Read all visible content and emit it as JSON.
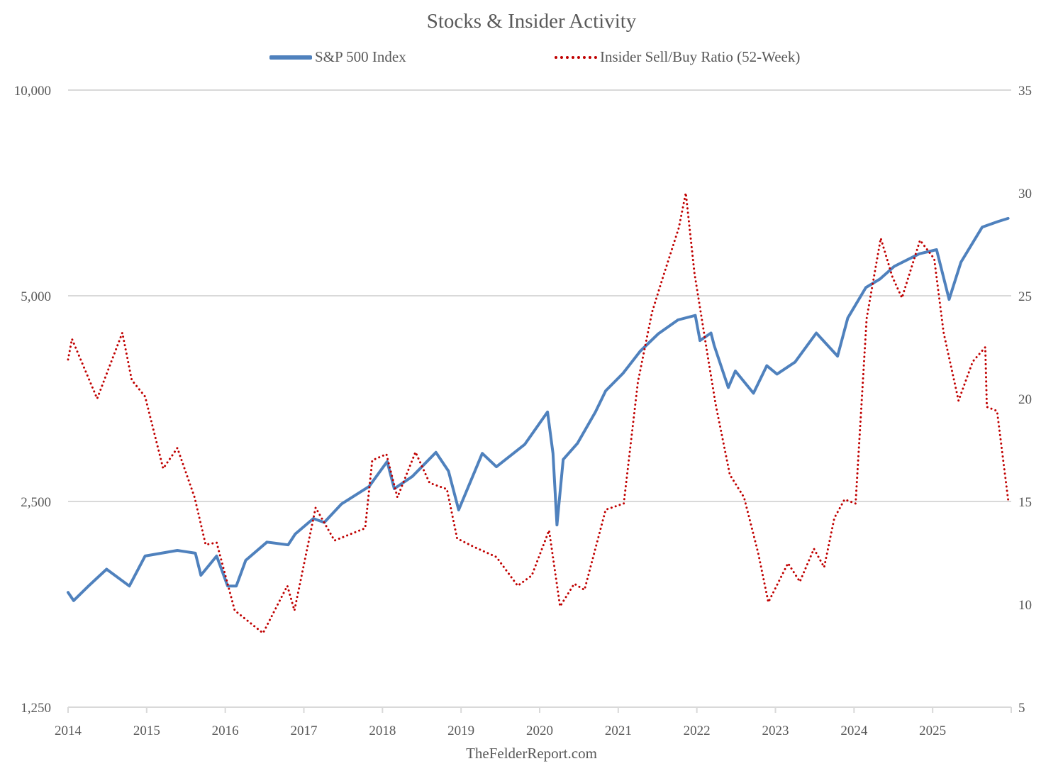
{
  "chart_data": {
    "type": "line",
    "title": "Stocks & Insider Activity",
    "footer": "TheFelderReport.com",
    "legend": {
      "placement": "top",
      "entries": [
        {
          "name": "S&P 500 Index",
          "style": "solid",
          "color": "#4f81bd",
          "axis": "left"
        },
        {
          "name": "Insider Sell/Buy Ratio (52-Week)",
          "style": "dotted",
          "color": "#c00000",
          "axis": "right"
        }
      ]
    },
    "x_axis": {
      "type": "time",
      "range": [
        2014.0,
        2026.0
      ],
      "tick_labels": [
        "2014",
        "2015",
        "2016",
        "2017",
        "2018",
        "2019",
        "2020",
        "2021",
        "2022",
        "2023",
        "2024",
        "2025"
      ],
      "tick_values": [
        2014,
        2015,
        2016,
        2017,
        2018,
        2019,
        2020,
        2021,
        2022,
        2023,
        2024,
        2025,
        2026
      ]
    },
    "y_left": {
      "scale": "log",
      "range": [
        1250,
        10000
      ],
      "tick_values": [
        1250,
        2500,
        5000,
        10000
      ],
      "tick_labels": [
        "1,250",
        "2,500",
        "5,000",
        "10,000"
      ],
      "grid": true
    },
    "y_right": {
      "scale": "linear",
      "range": [
        5,
        35
      ],
      "tick_values": [
        5,
        10,
        15,
        20,
        25,
        30,
        35
      ],
      "tick_labels": [
        "5",
        "10",
        "15",
        "20",
        "25",
        "30",
        "35"
      ]
    },
    "series": [
      {
        "name": "S&P 500 Index",
        "axis": "left",
        "x": [
          2014.0,
          2014.07,
          2014.26,
          2014.49,
          2014.78,
          2014.98,
          2015.39,
          2015.62,
          2015.69,
          2015.89,
          2016.03,
          2016.14,
          2016.26,
          2016.53,
          2016.8,
          2016.89,
          2017.12,
          2017.26,
          2017.48,
          2017.83,
          2018.06,
          2018.15,
          2018.38,
          2018.68,
          2018.84,
          2018.97,
          2019.27,
          2019.45,
          2019.81,
          2020.1,
          2020.17,
          2020.22,
          2020.3,
          2020.48,
          2020.71,
          2020.84,
          2021.06,
          2021.28,
          2021.51,
          2021.76,
          2021.98,
          2022.04,
          2022.18,
          2022.22,
          2022.4,
          2022.49,
          2022.72,
          2022.89,
          2023.02,
          2023.25,
          2023.52,
          2023.79,
          2023.92,
          2024.15,
          2024.33,
          2024.51,
          2024.83,
          2025.05,
          2025.21,
          2025.36,
          2025.63,
          2025.83,
          2025.96
        ],
        "values": [
          1840,
          1790,
          1880,
          1990,
          1880,
          2080,
          2120,
          2100,
          1950,
          2080,
          1880,
          1880,
          2050,
          2180,
          2160,
          2240,
          2360,
          2330,
          2480,
          2630,
          2860,
          2610,
          2720,
          2950,
          2770,
          2430,
          2940,
          2810,
          3030,
          3380,
          2940,
          2310,
          2880,
          3040,
          3380,
          3630,
          3850,
          4150,
          4400,
          4610,
          4680,
          4300,
          4410,
          4230,
          3670,
          3880,
          3600,
          3950,
          3840,
          4000,
          4410,
          4080,
          4640,
          5140,
          5290,
          5520,
          5760,
          5840,
          4940,
          5600,
          6300,
          6420,
          6490
        ]
      },
      {
        "name": "Insider Sell/Buy Ratio (52-Week)",
        "axis": "right",
        "x": [
          2014.0,
          2014.05,
          2014.37,
          2014.69,
          2014.81,
          2014.98,
          2015.21,
          2015.39,
          2015.61,
          2015.75,
          2015.89,
          2016.12,
          2016.48,
          2016.79,
          2016.88,
          2017.15,
          2017.39,
          2017.78,
          2017.87,
          2018.05,
          2018.19,
          2018.42,
          2018.6,
          2018.82,
          2018.95,
          2019.16,
          2019.45,
          2019.72,
          2019.9,
          2020.12,
          2020.26,
          2020.44,
          2020.57,
          2020.84,
          2021.07,
          2021.25,
          2021.43,
          2021.56,
          2021.77,
          2021.86,
          2021.97,
          2022.15,
          2022.24,
          2022.42,
          2022.6,
          2022.78,
          2022.91,
          2023.16,
          2023.31,
          2023.49,
          2023.62,
          2023.75,
          2023.88,
          2024.02,
          2024.16,
          2024.34,
          2024.49,
          2024.61,
          2024.84,
          2025.02,
          2025.14,
          2025.33,
          2025.51,
          2025.67,
          2025.69,
          2025.82,
          2025.96
        ],
        "values": [
          21.9,
          22.9,
          20.0,
          23.2,
          20.9,
          20.1,
          16.6,
          17.6,
          15.2,
          12.9,
          13.0,
          9.7,
          8.6,
          10.9,
          9.7,
          14.7,
          13.1,
          13.7,
          17.0,
          17.3,
          15.2,
          17.4,
          15.9,
          15.6,
          13.2,
          12.8,
          12.3,
          10.9,
          11.4,
          13.6,
          9.9,
          11.0,
          10.7,
          14.6,
          14.9,
          20.8,
          24.2,
          25.8,
          28.3,
          30.0,
          26.1,
          21.8,
          19.7,
          16.3,
          15.2,
          12.5,
          10.1,
          12.0,
          11.1,
          12.7,
          11.8,
          14.2,
          15.1,
          14.9,
          23.9,
          27.8,
          25.9,
          24.9,
          27.7,
          26.8,
          23.2,
          19.9,
          21.8,
          22.5,
          19.6,
          19.4,
          15.1
        ]
      }
    ]
  }
}
